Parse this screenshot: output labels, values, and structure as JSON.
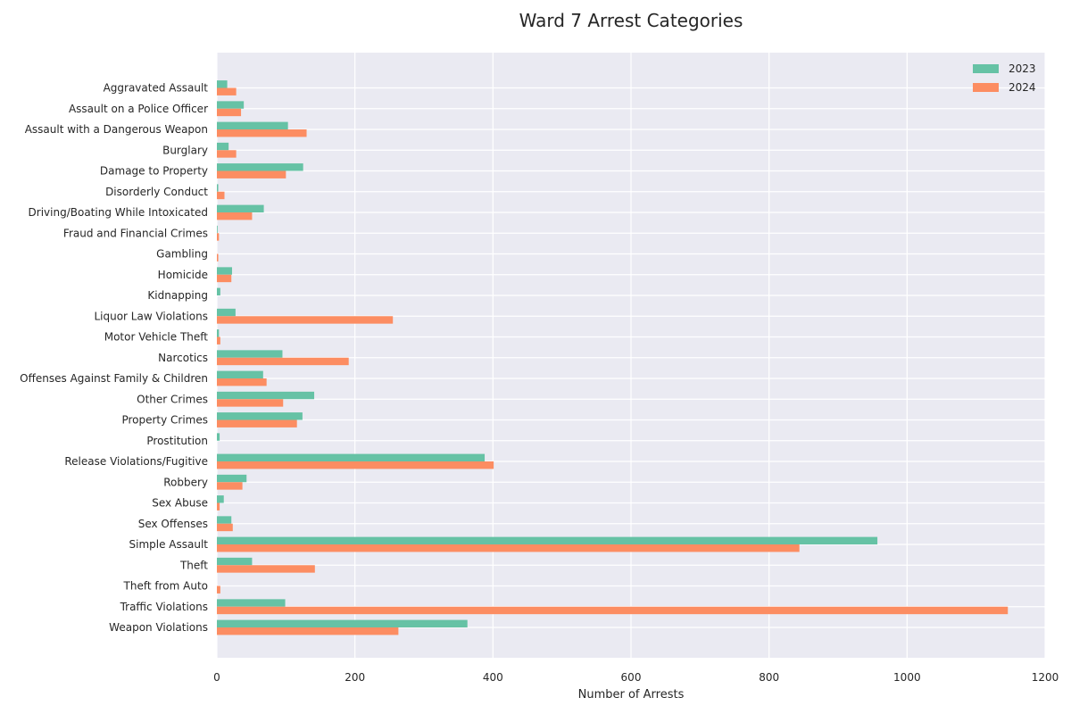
{
  "chart_data": {
    "type": "bar",
    "orientation": "horizontal",
    "title": "Ward 7 Arrest Categories",
    "xlabel": "Number of Arrests",
    "ylabel": "",
    "xlim": [
      0,
      1200
    ],
    "xticks": [
      0,
      200,
      400,
      600,
      800,
      1000,
      1200
    ],
    "grid": true,
    "legend_position": "top-right",
    "categories": [
      "Aggravated Assault",
      "Assault on a Police Officer",
      "Assault with a Dangerous Weapon",
      "Burglary",
      "Damage to Property",
      "Disorderly Conduct",
      "Driving/Boating While Intoxicated",
      "Fraud and Financial Crimes",
      "Gambling",
      "Homicide",
      "Kidnapping",
      "Liquor Law Violations",
      "Motor Vehicle Theft",
      "Narcotics",
      "Offenses Against Family & Children",
      "Other Crimes",
      "Property Crimes",
      "Prostitution",
      "Release Violations/Fugitive",
      "Robbery",
      "Sex Abuse",
      "Sex Offenses",
      "Simple Assault",
      "Theft",
      "Theft from Auto",
      "Traffic Violations",
      "Weapon Violations"
    ],
    "series": [
      {
        "name": "2023",
        "color": "#66c2a5",
        "values": [
          15,
          39,
          103,
          17,
          125,
          2,
          68,
          1,
          0,
          22,
          5,
          27,
          3,
          95,
          67,
          141,
          124,
          4,
          388,
          43,
          10,
          21,
          957,
          51,
          0,
          99,
          363
        ]
      },
      {
        "name": "2024",
        "color": "#fc8d62",
        "values": [
          28,
          35,
          130,
          28,
          100,
          11,
          51,
          3,
          2,
          21,
          0,
          255,
          5,
          191,
          72,
          96,
          116,
          0,
          401,
          37,
          4,
          23,
          844,
          142,
          5,
          1146,
          263
        ]
      }
    ]
  }
}
